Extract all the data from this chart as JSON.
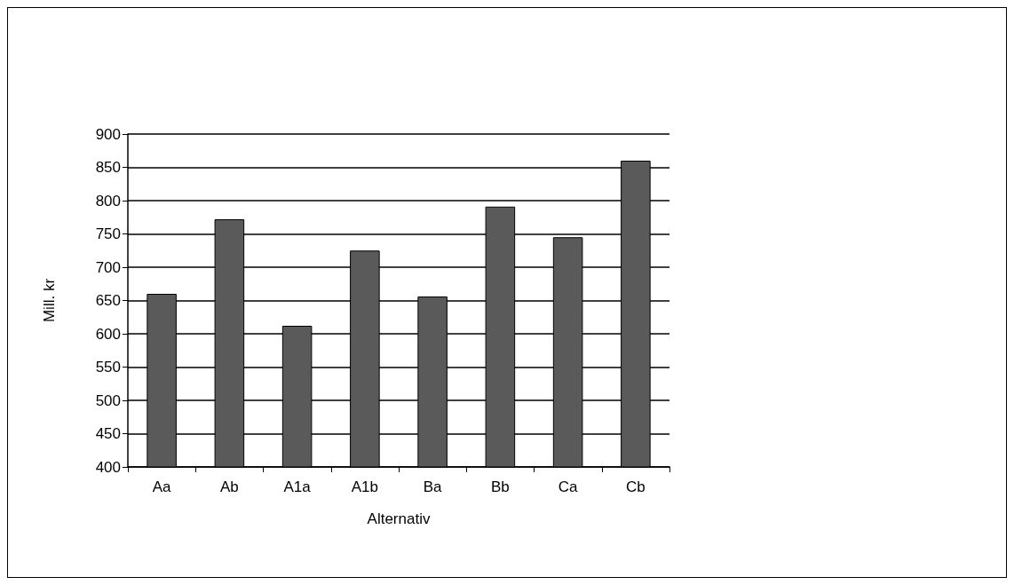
{
  "chart_data": {
    "type": "bar",
    "xlabel": "Alternativ",
    "ylabel": "Mill. kr",
    "categories": [
      "Aa",
      "Ab",
      "A1a",
      "A1b",
      "Ba",
      "Bb",
      "Ca",
      "Cb"
    ],
    "values": [
      660,
      772,
      612,
      725,
      656,
      791,
      745,
      860
    ],
    "color": "#5a5a5a",
    "ylim": [
      400,
      900
    ],
    "yticks": [
      400,
      450,
      500,
      550,
      600,
      650,
      700,
      750,
      800,
      850,
      900
    ],
    "grid": "y"
  }
}
